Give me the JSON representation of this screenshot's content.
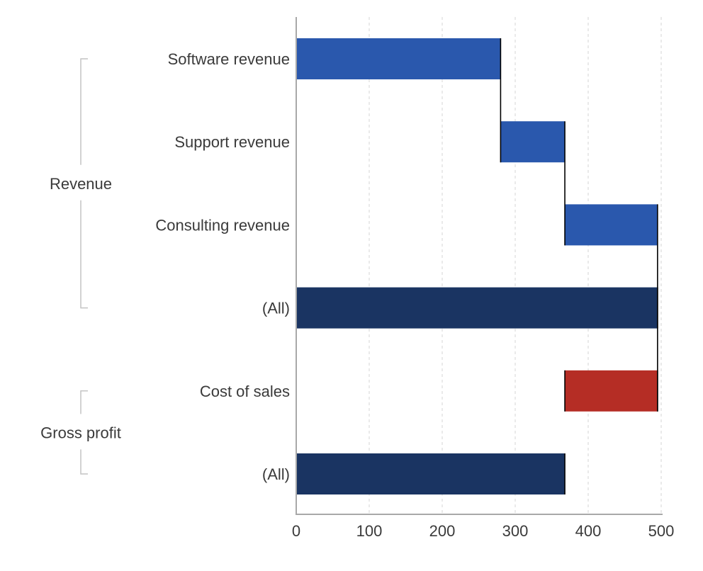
{
  "chart_data": {
    "type": "bar",
    "subtype": "waterfall",
    "orientation": "horizontal",
    "title": "",
    "xlabel": "",
    "ylabel": "",
    "xlim": [
      0,
      500
    ],
    "x_ticks": [
      0,
      100,
      200,
      300,
      400,
      500
    ],
    "grid": "vertical-dashed",
    "legend": "none",
    "colors": {
      "increase": "#2a58ad",
      "decrease": "#b52d25",
      "total": "#1a3462"
    },
    "groups": [
      {
        "label": "Revenue",
        "items": [
          {
            "label": "Software revenue",
            "start": 0,
            "end": 280,
            "value": 280,
            "kind": "increase"
          },
          {
            "label": "Support revenue",
            "start": 280,
            "end": 368,
            "value": 88,
            "kind": "increase"
          },
          {
            "label": "Consulting revenue",
            "start": 368,
            "end": 495,
            "value": 127,
            "kind": "increase"
          },
          {
            "label": "(All)",
            "start": 0,
            "end": 495,
            "value": 495,
            "kind": "total"
          }
        ]
      },
      {
        "label": "Gross profit",
        "items": [
          {
            "label": "Cost of sales",
            "start": 368,
            "end": 495,
            "value": -127,
            "kind": "decrease"
          },
          {
            "label": "(All)",
            "start": 0,
            "end": 368,
            "value": 368,
            "kind": "total"
          }
        ]
      }
    ]
  }
}
